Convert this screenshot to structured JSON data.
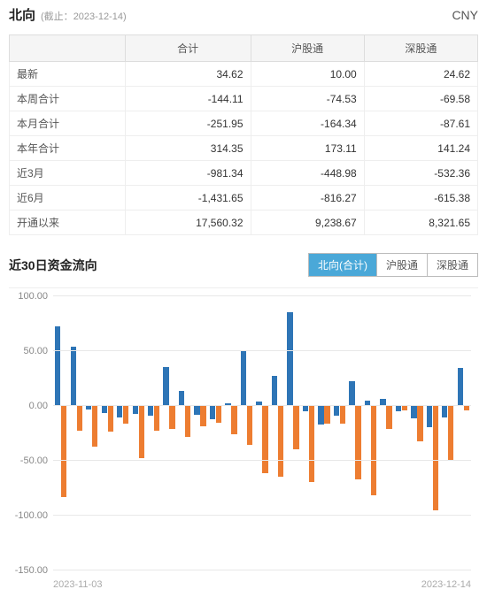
{
  "header": {
    "title": "北向",
    "subtitle_prefix": "(截止：",
    "date": "2023-12-14",
    "subtitle_suffix": ")",
    "currency": "CNY"
  },
  "table": {
    "columns": [
      "",
      "合计",
      "沪股通",
      "深股通"
    ],
    "rows": [
      [
        "最新",
        "34.62",
        "10.00",
        "24.62"
      ],
      [
        "本周合计",
        "-144.11",
        "-74.53",
        "-69.58"
      ],
      [
        "本月合计",
        "-251.95",
        "-164.34",
        "-87.61"
      ],
      [
        "本年合计",
        "314.35",
        "173.11",
        "141.24"
      ],
      [
        "近3月",
        "-981.34",
        "-448.98",
        "-532.36"
      ],
      [
        "近6月",
        "-1,431.65",
        "-816.27",
        "-615.38"
      ],
      [
        "开通以来",
        "17,560.32",
        "9,238.67",
        "8,321.65"
      ]
    ]
  },
  "chart_section": {
    "title": "近30日资金流向",
    "tabs": [
      "北向(合计)",
      "沪股通",
      "深股通"
    ],
    "active_tab": 0
  },
  "chart": {
    "type": "grouped-bar",
    "ymin": -150,
    "ymax": 100,
    "ytick_step": 50,
    "yticks": [
      100,
      50,
      0,
      -50,
      -100,
      -150
    ],
    "grid_color": "#e8e8e8",
    "colors": {
      "series_a": "#2e75b6",
      "series_b": "#ed7d31"
    },
    "background": "#ffffff",
    "x_start_label": "2023-11-03",
    "x_end_label": "2023-12-14",
    "series_a": [
      72,
      53,
      -4,
      -7,
      -11,
      -8,
      -10,
      35,
      13,
      -9,
      -13,
      2,
      50,
      3,
      27,
      85,
      -6,
      -18,
      -10,
      22,
      4,
      6,
      -6,
      -12,
      -20,
      -11,
      34
    ],
    "series_b": [
      -84,
      -23,
      -38,
      -24,
      -17,
      -48,
      -23,
      -22,
      -29,
      -19,
      -16,
      -27,
      -36,
      -62,
      -65,
      -40,
      -70,
      -17,
      -17,
      -68,
      -82,
      -22,
      -5,
      -33,
      -96,
      -50,
      -5
    ]
  }
}
